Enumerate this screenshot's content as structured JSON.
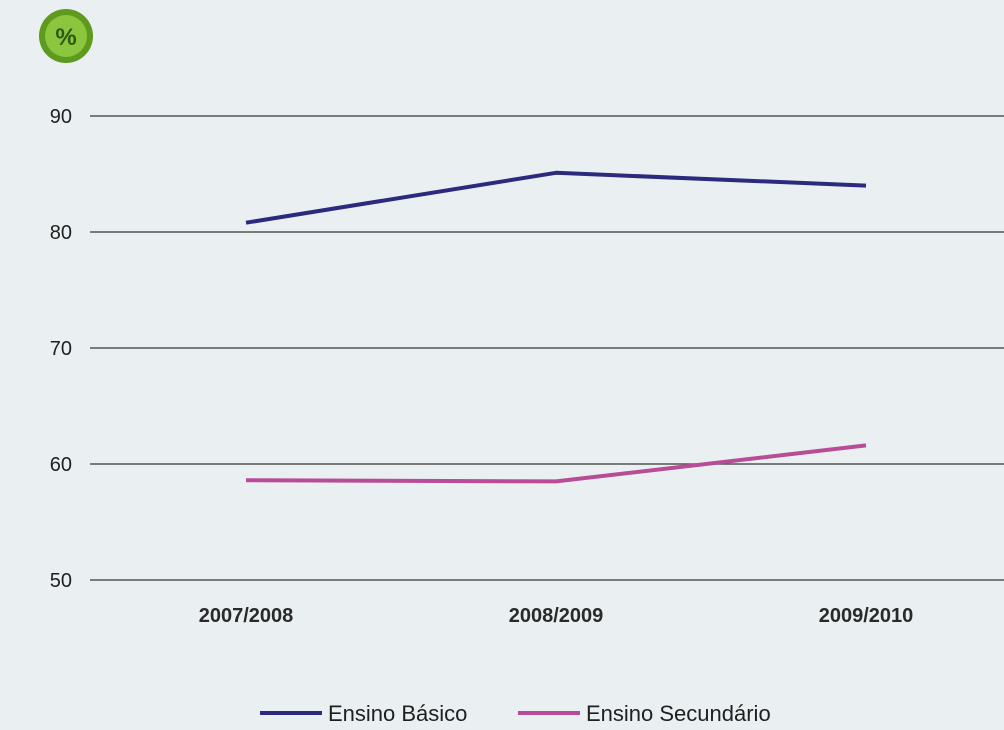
{
  "badge": {
    "label": "%",
    "fill": "#8cc63f",
    "ring": "#5e9a1e",
    "text_color": "#2c5a12"
  },
  "chart_data": {
    "type": "line",
    "title": "",
    "xlabel": "",
    "ylabel": "%",
    "categories": [
      "2007/2008",
      "2008/2009",
      "2009/2010"
    ],
    "ylim": [
      50,
      90
    ],
    "yticks": [
      90,
      80,
      70,
      60,
      50
    ],
    "grid": true,
    "legend_position": "bottom-center",
    "series": [
      {
        "name": "Ensino Básico",
        "values": [
          80.8,
          85.1,
          84.0
        ],
        "color": "#2b2a7c"
      },
      {
        "name": "Ensino Secundário",
        "values": [
          58.6,
          58.5,
          61.6
        ],
        "color": "#b84c96"
      }
    ]
  },
  "colors": {
    "background": "#eaf0f2",
    "grid": "#555555"
  }
}
